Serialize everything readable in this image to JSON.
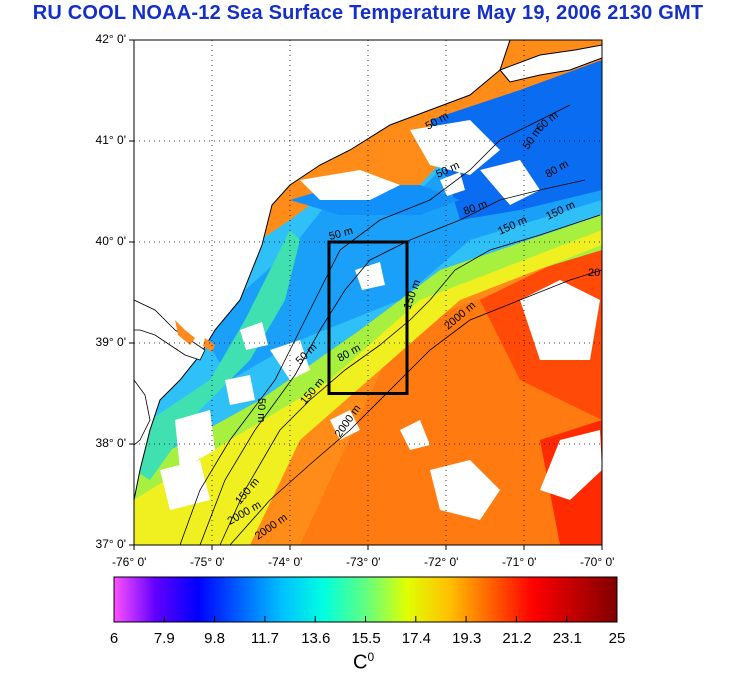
{
  "title": "RU COOL  NOAA-12 Sea Surface Temperature May 19, 2006 2130 GMT",
  "map": {
    "lat_labels": [
      "42° 0'",
      "41° 0'",
      "40° 0'",
      "39° 0'",
      "38° 0'",
      "37° 0'"
    ],
    "lon_labels": [
      "-76° 0'",
      "-75° 0'",
      "-74° 0'",
      "-73° 0'",
      "-72° 0'",
      "-71° 0'",
      "-70° 0'"
    ],
    "lat_range": [
      37,
      42
    ],
    "lon_range": [
      -76,
      -70
    ],
    "study_box": {
      "lon_min": -73.5,
      "lon_max": -72.5,
      "lat_min": 38.5,
      "lat_max": 40
    },
    "contour_labels": [
      "50 m",
      "50 m",
      "60 m",
      "80 m",
      "150 m",
      "50 m",
      "50 m",
      "80 m",
      "150 m",
      "150 m",
      "2000 m",
      "2000 m",
      "2000 m",
      "50 m",
      "80 m",
      "150 m",
      "2000 m",
      "20",
      "50 m",
      "150 m"
    ]
  },
  "colorbar": {
    "min": 6,
    "max": 25,
    "ticks": [
      "6",
      "7.9",
      "9.8",
      "11.7",
      "13.6",
      "15.5",
      "17.4",
      "19.3",
      "21.2",
      "23.1",
      "25"
    ],
    "unit": "C",
    "unit_sup": "0",
    "colors": [
      "#ff50ff",
      "#6000ff",
      "#0000ff",
      "#0060ff",
      "#00c0ff",
      "#00ffe0",
      "#60ff80",
      "#e0ff00",
      "#ffc000",
      "#ff6000",
      "#ff0000",
      "#c00000",
      "#800000"
    ]
  },
  "colors": {
    "title": "#1530c8",
    "land": "#ffffff",
    "shelf_cold": "#0a6cf0",
    "slope_warm": "#ff8a10",
    "box": "#000000"
  }
}
